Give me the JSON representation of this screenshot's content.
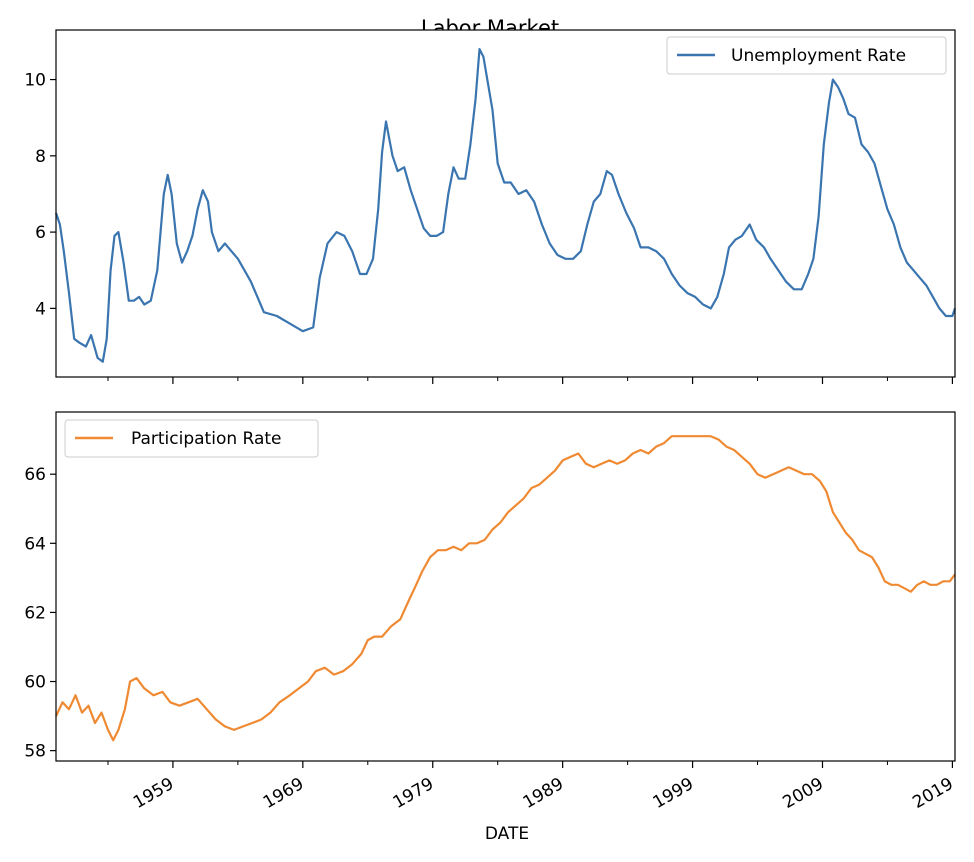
{
  "chart_data": {
    "type": "line",
    "title": "Labor Market",
    "xlabel": "DATE",
    "x_tick_labels": [
      "1959",
      "1969",
      "1979",
      "1989",
      "1999",
      "2009",
      "2019"
    ],
    "x_tick_years": [
      1959,
      1969,
      1979,
      1989,
      1999,
      2009,
      2019
    ],
    "xlim": [
      1950.0,
      2019.2
    ],
    "panels": [
      {
        "series": {
          "name": "Unemployment Rate",
          "color": "#3a75b0",
          "x": [
            1950.0,
            1950.3,
            1950.6,
            1951.0,
            1951.4,
            1951.8,
            1952.3,
            1952.7,
            1953.2,
            1953.6,
            1953.9,
            1954.2,
            1954.5,
            1954.8,
            1955.2,
            1955.6,
            1956.0,
            1956.4,
            1956.8,
            1957.3,
            1957.8,
            1958.3,
            1958.6,
            1958.9,
            1959.3,
            1959.7,
            1960.1,
            1960.5,
            1960.9,
            1961.3,
            1961.7,
            1962.0,
            1962.5,
            1963.0,
            1963.5,
            1964.0,
            1964.5,
            1965.0,
            1965.5,
            1966.0,
            1967.0,
            1968.0,
            1969.0,
            1969.8,
            1970.3,
            1970.9,
            1971.6,
            1972.2,
            1972.8,
            1973.4,
            1973.9,
            1974.4,
            1974.8,
            1975.1,
            1975.4,
            1975.9,
            1976.3,
            1976.8,
            1977.3,
            1977.8,
            1978.3,
            1978.8,
            1979.3,
            1979.8,
            1980.2,
            1980.6,
            1981.0,
            1981.5,
            1981.9,
            1982.3,
            1982.6,
            1982.9,
            1983.2,
            1983.6,
            1984.0,
            1984.5,
            1985.0,
            1985.6,
            1986.2,
            1986.8,
            1987.4,
            1988.0,
            1988.6,
            1989.2,
            1989.8,
            1990.4,
            1990.9,
            1991.4,
            1991.9,
            1992.4,
            1992.8,
            1993.3,
            1993.9,
            1994.5,
            1995.0,
            1995.6,
            1996.2,
            1996.8,
            1997.4,
            1998.0,
            1998.6,
            1999.2,
            1999.8,
            2000.4,
            2000.9,
            2001.4,
            2001.8,
            2002.3,
            2002.8,
            2003.4,
            2003.9,
            2004.5,
            2005.0,
            2005.6,
            2006.2,
            2006.8,
            2007.4,
            2007.9,
            2008.3,
            2008.7,
            2009.1,
            2009.5,
            2009.8,
            2010.2,
            2010.6,
            2011.0,
            2011.5,
            2012.0,
            2012.5,
            2013.0,
            2013.5,
            2014.0,
            2014.5,
            2015.0,
            2015.5,
            2016.0,
            2016.5,
            2017.0,
            2017.5,
            2018.0,
            2018.5,
            2019.0,
            2019.2
          ],
          "y": [
            6.5,
            6.2,
            5.5,
            4.4,
            3.2,
            3.1,
            3.0,
            3.3,
            2.7,
            2.6,
            3.2,
            5.0,
            5.9,
            6.0,
            5.2,
            4.2,
            4.2,
            4.3,
            4.1,
            4.2,
            5.0,
            7.0,
            7.5,
            7.0,
            5.7,
            5.2,
            5.5,
            5.9,
            6.6,
            7.1,
            6.8,
            6.0,
            5.5,
            5.7,
            5.5,
            5.3,
            5.0,
            4.7,
            4.3,
            3.9,
            3.8,
            3.6,
            3.4,
            3.5,
            4.8,
            5.7,
            6.0,
            5.9,
            5.5,
            4.9,
            4.9,
            5.3,
            6.6,
            8.1,
            8.9,
            8.0,
            7.6,
            7.7,
            7.1,
            6.6,
            6.1,
            5.9,
            5.9,
            6.0,
            7.0,
            7.7,
            7.4,
            7.4,
            8.3,
            9.5,
            10.8,
            10.6,
            10.0,
            9.2,
            7.8,
            7.3,
            7.3,
            7.0,
            7.1,
            6.8,
            6.2,
            5.7,
            5.4,
            5.3,
            5.3,
            5.5,
            6.2,
            6.8,
            7.0,
            7.6,
            7.5,
            7.0,
            6.5,
            6.1,
            5.6,
            5.6,
            5.5,
            5.3,
            4.9,
            4.6,
            4.4,
            4.3,
            4.1,
            4.0,
            4.3,
            4.9,
            5.6,
            5.8,
            5.9,
            6.2,
            5.8,
            5.6,
            5.3,
            5.0,
            4.7,
            4.5,
            4.5,
            4.9,
            5.3,
            6.4,
            8.3,
            9.4,
            10.0,
            9.8,
            9.5,
            9.1,
            9.0,
            8.3,
            8.1,
            7.8,
            7.2,
            6.6,
            6.2,
            5.6,
            5.2,
            5.0,
            4.8,
            4.6,
            4.3,
            4.0,
            3.8,
            3.8,
            4.0
          ],
          "ylim": [
            2.2,
            11.3
          ],
          "y_ticks": [
            4,
            6,
            8,
            10
          ],
          "y_tick_labels": [
            "4",
            "6",
            "8",
            "10"
          ]
        },
        "legend_placement": "upper right"
      },
      {
        "series": {
          "name": "Participation Rate",
          "color": "#ef8a33",
          "x": [
            1950.0,
            1950.5,
            1951.0,
            1951.5,
            1952.0,
            1952.5,
            1953.0,
            1953.5,
            1954.0,
            1954.4,
            1954.8,
            1955.3,
            1955.7,
            1956.2,
            1956.8,
            1957.5,
            1958.2,
            1958.8,
            1959.5,
            1960.2,
            1960.9,
            1961.6,
            1962.3,
            1963.0,
            1963.7,
            1964.4,
            1965.1,
            1965.8,
            1966.5,
            1967.2,
            1968.0,
            1968.7,
            1969.4,
            1970.0,
            1970.7,
            1971.4,
            1972.1,
            1972.8,
            1973.5,
            1974.0,
            1974.5,
            1975.1,
            1975.8,
            1976.5,
            1977.1,
            1977.6,
            1978.2,
            1978.8,
            1979.4,
            1980.0,
            1980.6,
            1981.2,
            1981.8,
            1982.4,
            1983.0,
            1983.6,
            1984.2,
            1984.8,
            1985.4,
            1986.0,
            1986.6,
            1987.2,
            1987.8,
            1988.4,
            1989.0,
            1989.6,
            1990.2,
            1990.8,
            1991.4,
            1992.0,
            1992.6,
            1993.2,
            1993.8,
            1994.4,
            1995.0,
            1995.6,
            1996.2,
            1996.8,
            1997.4,
            1998.0,
            1998.6,
            1999.2,
            1999.8,
            2000.4,
            2001.0,
            2001.6,
            2002.2,
            2002.8,
            2003.4,
            2004.0,
            2004.6,
            2005.2,
            2005.8,
            2006.4,
            2007.0,
            2007.6,
            2008.2,
            2008.8,
            2009.3,
            2009.8,
            2010.3,
            2010.8,
            2011.3,
            2011.8,
            2012.3,
            2012.8,
            2013.3,
            2013.8,
            2014.3,
            2014.8,
            2015.3,
            2015.8,
            2016.3,
            2016.8,
            2017.3,
            2017.8,
            2018.3,
            2018.8,
            2019.2
          ],
          "y": [
            59.0,
            59.4,
            59.2,
            59.6,
            59.1,
            59.3,
            58.8,
            59.1,
            58.6,
            58.3,
            58.6,
            59.2,
            60.0,
            60.1,
            59.8,
            59.6,
            59.7,
            59.4,
            59.3,
            59.4,
            59.5,
            59.2,
            58.9,
            58.7,
            58.6,
            58.7,
            58.8,
            58.9,
            59.1,
            59.4,
            59.6,
            59.8,
            60.0,
            60.3,
            60.4,
            60.2,
            60.3,
            60.5,
            60.8,
            61.2,
            61.3,
            61.3,
            61.6,
            61.8,
            62.3,
            62.7,
            63.2,
            63.6,
            63.8,
            63.8,
            63.9,
            63.8,
            64.0,
            64.0,
            64.1,
            64.4,
            64.6,
            64.9,
            65.1,
            65.3,
            65.6,
            65.7,
            65.9,
            66.1,
            66.4,
            66.5,
            66.6,
            66.3,
            66.2,
            66.3,
            66.4,
            66.3,
            66.4,
            66.6,
            66.7,
            66.6,
            66.8,
            66.9,
            67.1,
            67.1,
            67.1,
            67.1,
            67.1,
            67.1,
            67.0,
            66.8,
            66.7,
            66.5,
            66.3,
            66.0,
            65.9,
            66.0,
            66.1,
            66.2,
            66.1,
            66.0,
            66.0,
            65.8,
            65.5,
            64.9,
            64.6,
            64.3,
            64.1,
            63.8,
            63.7,
            63.6,
            63.3,
            62.9,
            62.8,
            62.8,
            62.7,
            62.6,
            62.8,
            62.9,
            62.8,
            62.8,
            62.9,
            62.9,
            63.1
          ],
          "ylim": [
            57.7,
            67.8
          ],
          "y_ticks": [
            58,
            60,
            62,
            64,
            66
          ],
          "y_tick_labels": [
            "58",
            "60",
            "62",
            "64",
            "66"
          ]
        },
        "legend_placement": "upper left"
      }
    ]
  }
}
